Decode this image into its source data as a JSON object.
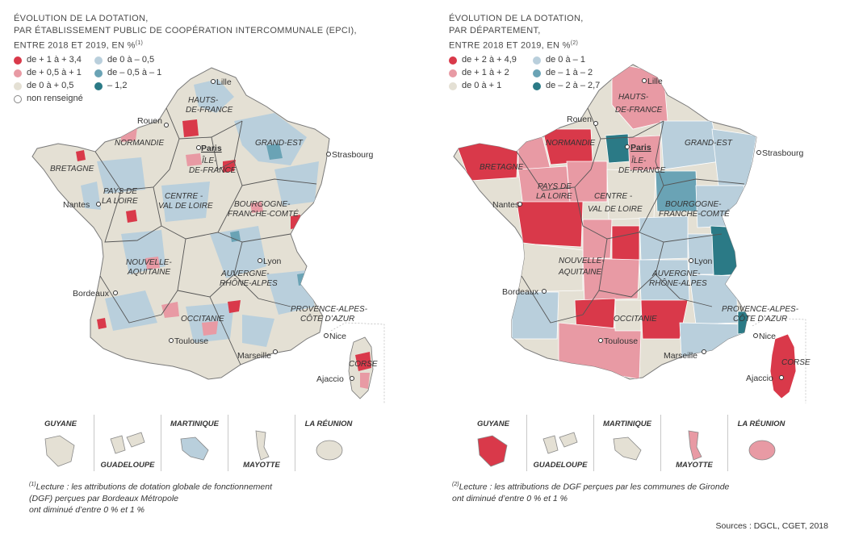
{
  "colors": {
    "pos_high": "#d9394a",
    "pos_mid": "#e89aa4",
    "neutral": "#e4e0d4",
    "neg_low": "#b9cfdc",
    "neg_mid": "#6aa3b5",
    "neg_high": "#2b7a86",
    "unknown": "#ffffff"
  },
  "left": {
    "title_line1": "ÉVOLUTION DE LA DOTATION,",
    "title_line2": "PAR ÉTABLISSEMENT PUBLIC DE COOPÉRATION INTERCOMMUNALE (EPCI),",
    "title_line3": "ENTRE 2018 ET 2019, EN %",
    "title_note": "(1)",
    "legend": [
      {
        "label": "de + 1 à + 3,4",
        "color": "#d9394a"
      },
      {
        "label": "de + 0,5 à + 1",
        "color": "#e89aa4"
      },
      {
        "label": "de 0 à + 0,5",
        "color": "#e4e0d4"
      },
      {
        "label": "non renseigné",
        "color": "#ffffff"
      },
      {
        "label": "de 0 à – 0,5",
        "color": "#b9cfdc"
      },
      {
        "label": "de – 0,5 à – 1",
        "color": "#6aa3b5"
      },
      {
        "label": "– 1,2",
        "color": "#2b7a86"
      }
    ],
    "dom": [
      {
        "name": "GUYANE",
        "color": "#e4e0d4"
      },
      {
        "name": "GUADELOUPE",
        "color": "#e4e0d4"
      },
      {
        "name": "MARTINIQUE",
        "color": "#b9cfdc"
      },
      {
        "name": "MAYOTTE",
        "color": "#e4e0d4"
      },
      {
        "name": "LA RÉUNION",
        "color": "#e4e0d4"
      }
    ],
    "note_mark": "(1)",
    "note_line1": "Lecture : les attributions de dotation globale de fonctionnement",
    "note_line2": "(DGF) perçues par Bordeaux Métropole",
    "note_line3": "ont diminué d’entre 0 % et 1 %"
  },
  "right": {
    "title_line1": "ÉVOLUTION DE LA DOTATION,",
    "title_line2": "PAR DÉPARTEMENT,",
    "title_line3": "ENTRE 2018 ET 2019, EN %",
    "title_note": "(2)",
    "legend": [
      {
        "label": "de + 2 à + 4,9",
        "color": "#d9394a"
      },
      {
        "label": "de + 1 à + 2",
        "color": "#e89aa4"
      },
      {
        "label": "de 0 à + 1",
        "color": "#e4e0d4"
      },
      {
        "label": "de 0 à – 1",
        "color": "#b9cfdc"
      },
      {
        "label": "de – 1 à – 2",
        "color": "#6aa3b5"
      },
      {
        "label": "de – 2 à – 2,7",
        "color": "#2b7a86"
      }
    ],
    "dom": [
      {
        "name": "GUYANE",
        "color": "#d9394a"
      },
      {
        "name": "GUADELOUPE",
        "color": "#e4e0d4"
      },
      {
        "name": "MARTINIQUE",
        "color": "#e4e0d4"
      },
      {
        "name": "MAYOTTE",
        "color": "#e89aa4"
      },
      {
        "name": "LA RÉUNION",
        "color": "#e89aa4"
      }
    ],
    "note_mark": "(2)",
    "note_line1": "Lecture : les attributions de DGF perçues par les communes de Gironde",
    "note_line2": "ont diminué d’entre 0 % et 1 %"
  },
  "regions": {
    "hauts_de_france_1": "HAUTS-",
    "hauts_de_france_2": "DE-FRANCE",
    "normandie": "NORMANDIE",
    "grand_est": "GRAND-EST",
    "bretagne": "BRETAGNE",
    "ile_de_france_1": "ÎLE-",
    "ile_de_france_2": "DE-FRANCE",
    "pays_de_la_loire_1": "PAYS DE",
    "pays_de_la_loire_2": "LA LOIRE",
    "centre_1": "CENTRE -",
    "centre_2": "VAL DE LOIRE",
    "bourgogne_1": "BOURGOGNE-",
    "bourgogne_2": "FRANCHE-COMTÉ",
    "nouvelle_aquitaine_1": "NOUVELLE-",
    "nouvelle_aquitaine_2": "AQUITAINE",
    "auvergne_1": "AUVERGNE-",
    "auvergne_2": "RHÔNE-ALPES",
    "occitanie": "OCCITANIE",
    "paca_1": "PROVENCE-ALPES-",
    "paca_2": "CÔTE D’AZUR",
    "corse": "CORSE"
  },
  "cities": {
    "lille": "Lille",
    "rouen": "Rouen",
    "paris": "Paris",
    "strasbourg": "Strasbourg",
    "nantes": "Nantes",
    "lyon": "Lyon",
    "bordeaux": "Bordeaux",
    "toulouse": "Toulouse",
    "marseille": "Marseille",
    "nice": "Nice",
    "ajaccio": "Ajaccio"
  },
  "sources": "Sources : DGCL, CGET, 2018"
}
